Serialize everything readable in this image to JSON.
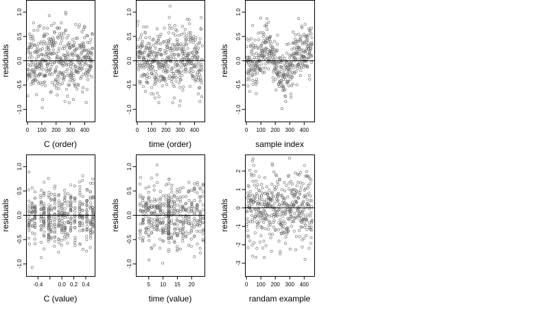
{
  "figure": {
    "panel_order": [
      "c_order",
      "time_order",
      "sample_index",
      "c_value",
      "time_value",
      "randam_example"
    ]
  },
  "chart_data": [
    {
      "id": "c_order",
      "type": "scatter",
      "xlabel": "C (order)",
      "ylabel": "residuals",
      "xlim": [
        -10,
        470
      ],
      "ylim": [
        -1.25,
        1.25
      ],
      "xticks": [
        0,
        100,
        200,
        300,
        400
      ],
      "yticks": [
        -1.0,
        -0.5,
        0.0,
        0.5,
        1.0
      ],
      "xtick_labels": [
        "0",
        "100",
        "200",
        "300",
        "400"
      ],
      "ytick_labels": [
        "-1.0",
        "-0.5",
        "0.0",
        "0.5",
        "1.0"
      ],
      "hline": 0,
      "marker": "open-circle",
      "n_points": 455,
      "seed": 11,
      "generator": "c_order",
      "x": [
        0,
        455
      ],
      "y": [
        -1.0,
        1.2
      ]
    },
    {
      "id": "time_order",
      "type": "scatter",
      "xlabel": "time (order)",
      "ylabel": "residuals",
      "xlim": [
        -10,
        470
      ],
      "ylim": [
        -1.25,
        1.25
      ],
      "xticks": [
        0,
        100,
        200,
        300,
        400
      ],
      "yticks": [
        -1.0,
        -0.5,
        0.0,
        0.5,
        1.0
      ],
      "xtick_labels": [
        "0",
        "100",
        "200",
        "300",
        "400"
      ],
      "ytick_labels": [
        "-1.0",
        "-0.5",
        "0.0",
        "0.5",
        "1.0"
      ],
      "hline": 0,
      "marker": "open-circle",
      "n_points": 455,
      "seed": 23,
      "generator": "time_order",
      "x": [
        0,
        455
      ],
      "y": [
        -1.2,
        1.2
      ]
    },
    {
      "id": "sample_index",
      "type": "scatter",
      "xlabel": "sample index",
      "ylabel": "residuals",
      "xlim": [
        -10,
        470
      ],
      "ylim": [
        -1.25,
        1.25
      ],
      "xticks": [
        0,
        100,
        200,
        300,
        400
      ],
      "yticks": [
        -1.0,
        -0.5,
        0.0,
        0.5,
        1.0
      ],
      "xtick_labels": [
        "0",
        "100",
        "200",
        "300",
        "400"
      ],
      "ytick_labels": [
        "-1.0",
        "-0.5",
        "0.0",
        "0.5",
        "1.0"
      ],
      "hline": 0,
      "marker": "open-circle",
      "n_points": 455,
      "seed": 37,
      "generator": "sample_index",
      "x": [
        0,
        455
      ],
      "y": [
        -1.2,
        1.2
      ]
    },
    {
      "id": "c_value",
      "type": "scatter",
      "xlabel": "C (value)",
      "ylabel": "residuals",
      "xlim": [
        -0.6,
        0.55
      ],
      "ylim": [
        -1.25,
        1.25
      ],
      "xticks": [
        -0.4,
        -0.2,
        0.0,
        0.2,
        0.4
      ],
      "yticks": [
        -1.0,
        -0.5,
        0.0,
        0.5,
        1.0
      ],
      "xtick_labels": [
        "-0.4",
        "",
        "0.0",
        "0.2",
        "0.4"
      ],
      "ytick_labels": [
        "-1.0",
        "-0.5",
        "0.0",
        "0.5",
        "1.0"
      ],
      "hline": 0,
      "marker": "open-circle",
      "n_points": 455,
      "seed": 41,
      "generator": "c_value",
      "x_clusters": [
        -0.55,
        -0.5,
        -0.45,
        -0.35,
        -0.3,
        -0.22,
        -0.18,
        -0.12,
        -0.05,
        0.0,
        0.05,
        0.1,
        0.15,
        0.22,
        0.3,
        0.35,
        0.42,
        0.48,
        0.52
      ],
      "x": [
        -0.55,
        0.52
      ],
      "y": [
        -1.2,
        1.2
      ]
    },
    {
      "id": "time_value",
      "type": "scatter",
      "xlabel": "time (value)",
      "ylabel": "residuals",
      "xlim": [
        0.5,
        24.5
      ],
      "ylim": [
        -1.25,
        1.25
      ],
      "xticks": [
        5,
        10,
        15,
        20
      ],
      "yticks": [
        -1.0,
        -0.5,
        0.0,
        0.5,
        1.0
      ],
      "xtick_labels": [
        "5",
        "10",
        "15",
        "20"
      ],
      "ytick_labels": [
        "-1.0",
        "-0.5",
        "0.0",
        "0.5",
        "1.0"
      ],
      "hline": 0,
      "marker": "open-circle",
      "n_points": 455,
      "seed": 53,
      "generator": "time_value",
      "x_clusters": [
        2,
        3,
        4,
        5,
        6,
        7,
        8,
        9,
        10,
        11,
        12,
        13,
        14,
        15,
        16,
        17,
        18,
        19,
        20,
        21,
        22,
        23,
        24
      ],
      "x": [
        2,
        24
      ],
      "y": [
        -1.2,
        1.2
      ]
    },
    {
      "id": "randam_example",
      "type": "scatter",
      "xlabel": "randam example",
      "ylabel": "residuals",
      "xlim": [
        -10,
        470
      ],
      "ylim": [
        -3.7,
        2.9
      ],
      "xticks": [
        0,
        100,
        200,
        300,
        400
      ],
      "yticks": [
        -3,
        -2,
        -1,
        0,
        1,
        2
      ],
      "xtick_labels": [
        "0",
        "100",
        "200",
        "300",
        "400"
      ],
      "ytick_labels": [
        "-3",
        "-2",
        "-1",
        "0",
        "1",
        "2"
      ],
      "hline": 0,
      "marker": "open-circle",
      "n_points": 455,
      "seed": 67,
      "generator": "random_normal",
      "x": [
        0,
        455
      ],
      "y": [
        -3.5,
        2.7
      ]
    }
  ]
}
